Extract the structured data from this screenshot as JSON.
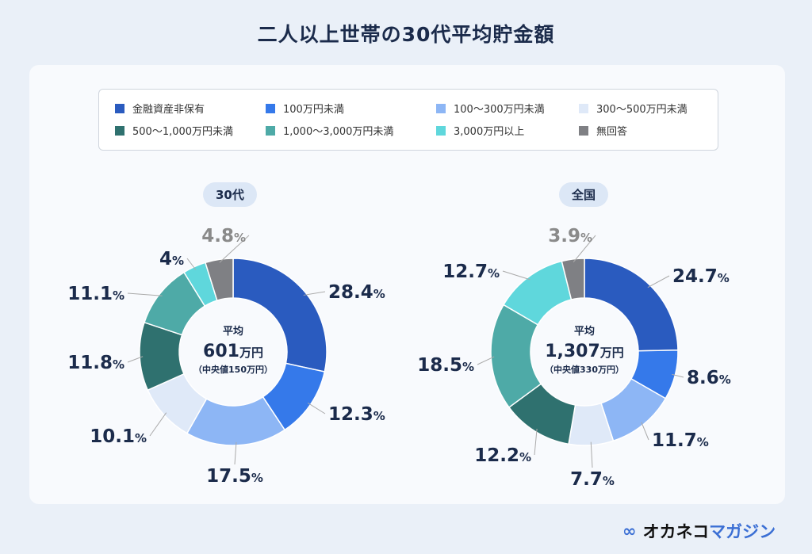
{
  "title": "二人以上世帯の30代平均貯金額",
  "legend": [
    {
      "label": "金融資産非保有",
      "color": "#2a5bbf"
    },
    {
      "label": "100万円未満",
      "color": "#3579ea"
    },
    {
      "label": "100〜300万円未満",
      "color": "#8db6f5"
    },
    {
      "label": "300〜500万円未満",
      "color": "#dfe9f8"
    },
    {
      "label": "500〜1,000万円未満",
      "color": "#2f716f"
    },
    {
      "label": "1,000〜3,000万円未満",
      "color": "#4eaaa7"
    },
    {
      "label": "3,000万円以上",
      "color": "#5fd7dc"
    },
    {
      "label": "無回答",
      "color": "#7f8084"
    }
  ],
  "chart_data": [
    {
      "type": "pie",
      "donut": true,
      "title": "30代",
      "categories": [
        "金融資産非保有",
        "100万円未満",
        "100〜300万円未満",
        "300〜500万円未満",
        "500〜1,000万円未満",
        "1,000〜3,000万円未満",
        "3,000万円以上",
        "無回答"
      ],
      "values": [
        28.4,
        12.3,
        17.5,
        10.1,
        11.8,
        11.1,
        4,
        4.8
      ],
      "labels": [
        "28.4",
        "12.3",
        "17.5",
        "10.1",
        "11.8",
        "11.1",
        "4",
        "4.8"
      ],
      "center_top": "平均",
      "center_value": "601",
      "center_unit": "万円",
      "center_note": "（中央値150万円）"
    },
    {
      "type": "pie",
      "donut": true,
      "title": "全国",
      "categories": [
        "金融資産非保有",
        "100万円未満",
        "100〜300万円未満",
        "300〜500万円未満",
        "500〜1,000万円未満",
        "1,000〜3,000万円未満",
        "3,000万円以上",
        "無回答"
      ],
      "values": [
        24.7,
        8.6,
        11.7,
        7.7,
        12.2,
        18.5,
        12.7,
        3.9
      ],
      "labels": [
        "24.7",
        "8.6",
        "11.7",
        "7.7",
        "12.2",
        "18.5",
        "12.7",
        "3.9"
      ],
      "center_top": "平均",
      "center_value": "1,307",
      "center_unit": "万円",
      "center_note": "（中央値330万円）"
    }
  ],
  "percent_sign": "%",
  "logo": {
    "dark": "オカネコ",
    "blue": "マガジン"
  }
}
